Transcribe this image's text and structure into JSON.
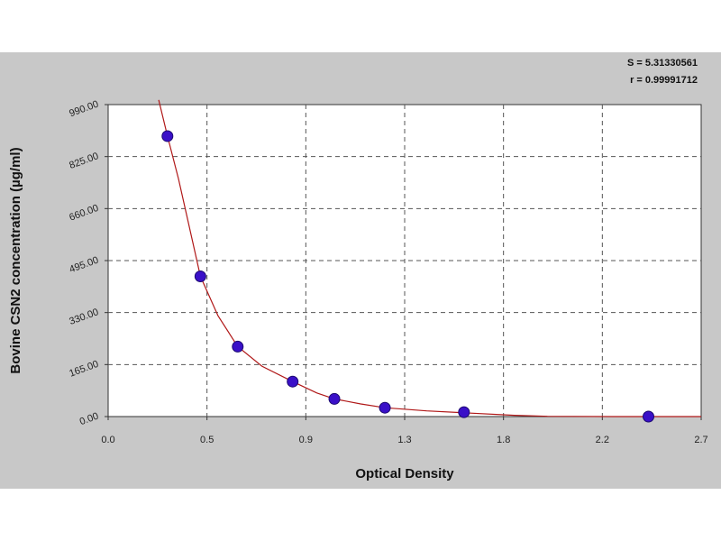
{
  "chart_data": {
    "type": "scatter",
    "title": "",
    "xlabel": "Optical Density",
    "ylabel": "Bovine CSN2 concentration (µg/ml)",
    "xlim": [
      0.0,
      2.7
    ],
    "ylim": [
      0,
      990
    ],
    "x_ticks": [
      "0.0",
      "0.5",
      "0.9",
      "1.3",
      "1.8",
      "2.2",
      "2.7"
    ],
    "y_ticks": [
      "0.00",
      "165.00",
      "330.00",
      "495.00",
      "660.00",
      "825.00",
      "990.00"
    ],
    "grid": true,
    "points": [
      {
        "x": 0.27,
        "y": 890
      },
      {
        "x": 0.42,
        "y": 445
      },
      {
        "x": 0.59,
        "y": 222
      },
      {
        "x": 0.84,
        "y": 111
      },
      {
        "x": 1.03,
        "y": 56
      },
      {
        "x": 1.26,
        "y": 28
      },
      {
        "x": 1.62,
        "y": 14
      },
      {
        "x": 2.46,
        "y": 0
      }
    ],
    "fit_curve": [
      {
        "x": 0.23,
        "y": 1005
      },
      {
        "x": 0.27,
        "y": 890
      },
      {
        "x": 0.32,
        "y": 755
      },
      {
        "x": 0.37,
        "y": 600
      },
      {
        "x": 0.42,
        "y": 445
      },
      {
        "x": 0.5,
        "y": 320
      },
      {
        "x": 0.59,
        "y": 222
      },
      {
        "x": 0.7,
        "y": 160
      },
      {
        "x": 0.84,
        "y": 111
      },
      {
        "x": 0.95,
        "y": 75
      },
      {
        "x": 1.03,
        "y": 56
      },
      {
        "x": 1.15,
        "y": 40
      },
      {
        "x": 1.26,
        "y": 28
      },
      {
        "x": 1.45,
        "y": 18
      },
      {
        "x": 1.62,
        "y": 12
      },
      {
        "x": 1.85,
        "y": 4
      },
      {
        "x": 2.0,
        "y": 1
      },
      {
        "x": 2.3,
        "y": 0
      },
      {
        "x": 2.7,
        "y": 0
      }
    ],
    "stats": {
      "s": "S = 5.31330561",
      "r": "r = 0.99991712"
    },
    "colors": {
      "point": "#3a10c8",
      "curve": "#b01818",
      "grid": "#555555",
      "background": "#c8c8c8",
      "plot": "#ffffff"
    }
  }
}
